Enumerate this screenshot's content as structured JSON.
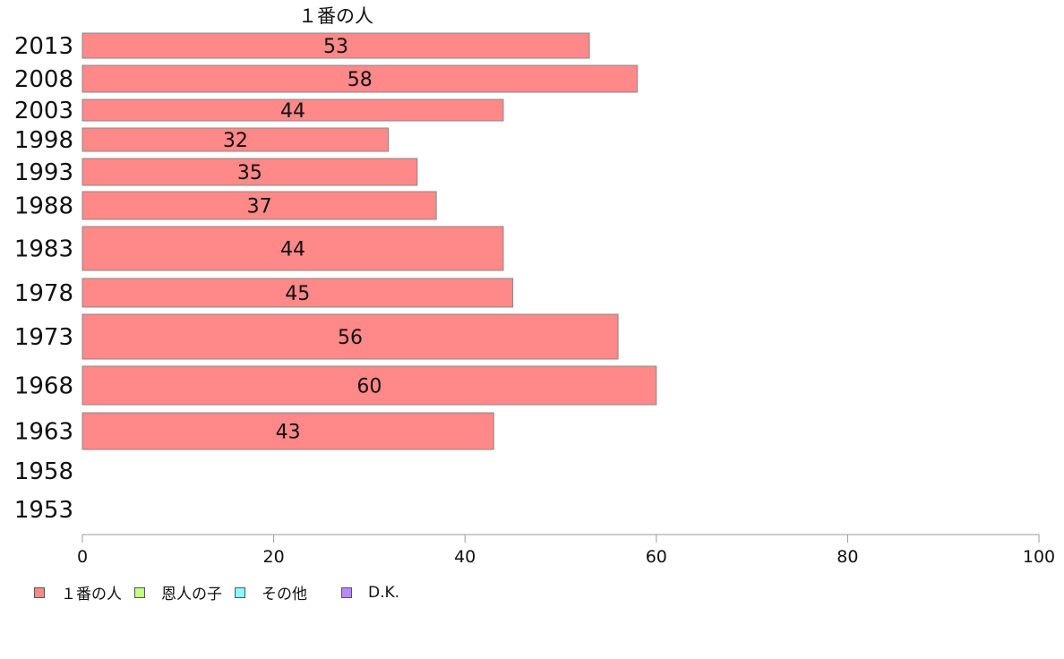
{
  "chart_data": {
    "type": "bar",
    "orientation": "horizontal",
    "title": "１番の人",
    "categories": [
      "2013",
      "2008",
      "2003",
      "1998",
      "1993",
      "1988",
      "1983",
      "1978",
      "1973",
      "1968",
      "1963",
      "1958",
      "1953"
    ],
    "series": [
      {
        "name": "１番の人",
        "color": "#ff8888",
        "values": [
          53,
          58,
          44,
          32,
          35,
          37,
          44,
          45,
          56,
          60,
          43,
          null,
          null
        ]
      }
    ],
    "xlim": [
      0,
      100
    ],
    "xticks": [
      0,
      20,
      40,
      60,
      80,
      100
    ],
    "data_labels": [
      "53",
      "58",
      "44",
      "32",
      "35",
      "37",
      "44",
      "45",
      "56",
      "60",
      "43",
      "",
      ""
    ],
    "grid": false,
    "legend_position": "bottom-left",
    "legend": [
      {
        "label": "１番の人",
        "color": "#ff8888"
      },
      {
        "label": "恩人の子",
        "color": "#c0ff88"
      },
      {
        "label": "その他",
        "color": "#88ffff"
      },
      {
        "label": "D.K.",
        "color": "#bb88ff"
      }
    ]
  }
}
